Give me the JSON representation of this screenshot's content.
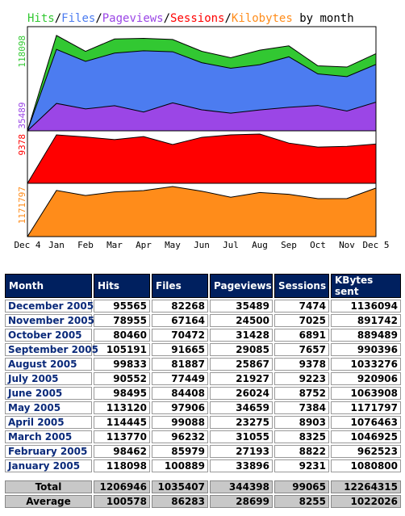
{
  "chart_data": {
    "type": "area",
    "title": {
      "parts": [
        {
          "text": "Hits",
          "color": "#32c832"
        },
        {
          "text": "/",
          "color": "#000000"
        },
        {
          "text": "Files",
          "color": "#4c7cf0"
        },
        {
          "text": "/",
          "color": "#000000"
        },
        {
          "text": "Pageviews",
          "color": "#9b46e6"
        },
        {
          "text": "/",
          "color": "#000000"
        },
        {
          "text": "Sessions",
          "color": "#ff0000"
        },
        {
          "text": "/",
          "color": "#000000"
        },
        {
          "text": "Kilobytes",
          "color": "#ff8c1a"
        },
        {
          "text": " by month",
          "color": "#000000"
        }
      ]
    },
    "x_labels": [
      "Dec 4",
      "Jan",
      "Feb",
      "Mar",
      "Apr",
      "May",
      "Jun",
      "Jul",
      "Aug",
      "Sep",
      "Oct",
      "Nov",
      "Dec 5"
    ],
    "panels": [
      {
        "name": "hits-files-pageviews",
        "y_tick_labels": [
          {
            "text": "118098",
            "value": 118098,
            "color": "#32c832"
          },
          {
            "text": "35489",
            "value": 35489,
            "color": "#9b46e6"
          }
        ],
        "ylim": [
          0,
          125000
        ],
        "series": [
          {
            "name": "Hits",
            "color": "#32c832",
            "values": [
              0,
              118098,
              98462,
              113770,
              114445,
              113120,
              98495,
              90552,
              99833,
              105191,
              80460,
              78955,
              95565
            ]
          },
          {
            "name": "Files",
            "color": "#4c7cf0",
            "values": [
              0,
              100889,
              85979,
              96232,
              99088,
              97906,
              84408,
              77449,
              81887,
              91665,
              70472,
              67164,
              82268
            ]
          },
          {
            "name": "Pageviews",
            "color": "#9b46e6",
            "values": [
              0,
              33896,
              27193,
              31055,
              23275,
              34659,
              26024,
              21927,
              25867,
              29085,
              31428,
              24500,
              35489
            ]
          }
        ]
      },
      {
        "name": "sessions",
        "y_tick_labels": [
          {
            "text": "9378",
            "value": 9378,
            "color": "#ff0000"
          }
        ],
        "ylim": [
          0,
          9378
        ],
        "series": [
          {
            "name": "Sessions",
            "color": "#ff0000",
            "values": [
              0,
              9231,
              8822,
              8325,
              8903,
              7384,
              8752,
              9223,
              9378,
              7657,
              6891,
              7025,
              7474
            ]
          }
        ]
      },
      {
        "name": "kilobytes",
        "y_tick_labels": [
          {
            "text": "1171797",
            "value": 1171797,
            "color": "#ff8c1a"
          }
        ],
        "ylim": [
          0,
          1171797
        ],
        "series": [
          {
            "name": "Kilobytes",
            "color": "#ff8c1a",
            "values": [
              0,
              1080800,
              962523,
              1046925,
              1076463,
              1171797,
              1063908,
              920906,
              1033276,
              990396,
              889489,
              891742,
              1136094
            ]
          }
        ]
      }
    ]
  },
  "table": {
    "headers": [
      "Month",
      "Hits",
      "Files",
      "Pageviews",
      "Sessions",
      "KBytes sent"
    ],
    "rows": [
      [
        "December 2005",
        "95565",
        "82268",
        "35489",
        "7474",
        "1136094"
      ],
      [
        "November 2005",
        "78955",
        "67164",
        "24500",
        "7025",
        "891742"
      ],
      [
        "October 2005",
        "80460",
        "70472",
        "31428",
        "6891",
        "889489"
      ],
      [
        "September 2005",
        "105191",
        "91665",
        "29085",
        "7657",
        "990396"
      ],
      [
        "August 2005",
        "99833",
        "81887",
        "25867",
        "9378",
        "1033276"
      ],
      [
        "July 2005",
        "90552",
        "77449",
        "21927",
        "9223",
        "920906"
      ],
      [
        "June 2005",
        "98495",
        "84408",
        "26024",
        "8752",
        "1063908"
      ],
      [
        "May 2005",
        "113120",
        "97906",
        "34659",
        "7384",
        "1171797"
      ],
      [
        "April 2005",
        "114445",
        "99088",
        "23275",
        "8903",
        "1076463"
      ],
      [
        "March 2005",
        "113770",
        "96232",
        "31055",
        "8325",
        "1046925"
      ],
      [
        "February 2005",
        "98462",
        "85979",
        "27193",
        "8822",
        "962523"
      ],
      [
        "January 2005",
        "118098",
        "100889",
        "33896",
        "9231",
        "1080800"
      ]
    ],
    "total": [
      "Total",
      "1206946",
      "1035407",
      "344398",
      "99065",
      "12264315"
    ],
    "average": [
      "Average",
      "100578",
      "86283",
      "28699",
      "8255",
      "1022026"
    ]
  }
}
